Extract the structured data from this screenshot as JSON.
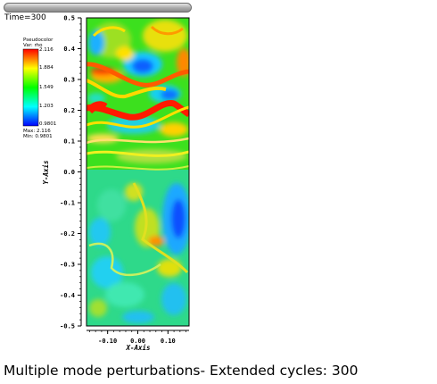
{
  "header": {
    "time_label": "Time=300"
  },
  "legend": {
    "title": "Pseudocolor",
    "var": "Var: rho",
    "tick_labels": [
      "2.116",
      "1.884",
      "1.549",
      "1.203",
      "0.9801"
    ],
    "max_label": "Max: 2.116",
    "min_label": "Min: 0.9801",
    "colormap": [
      "#0000ff",
      "#00ffff",
      "#00ff00",
      "#ffff00",
      "#ff0000"
    ]
  },
  "caption": "Multiple mode perturbations- Extended cycles: 300",
  "chart_data": {
    "type": "heatmap",
    "variable": "rho",
    "min": 0.9801,
    "max": 2.116,
    "xlabel": "X-Axis",
    "ylabel": "Y-Axis",
    "xlim": [
      -0.17,
      0.17
    ],
    "ylim": [
      -0.5,
      0.5
    ],
    "x_ticks": [
      "-0.10",
      "0.00",
      "0.10"
    ],
    "y_ticks": [
      "-0.5",
      "-0.4",
      "-0.3",
      "-0.2",
      "-0.1",
      "0.0",
      "0.1",
      "0.2",
      "0.3",
      "0.4",
      "0.5"
    ]
  }
}
